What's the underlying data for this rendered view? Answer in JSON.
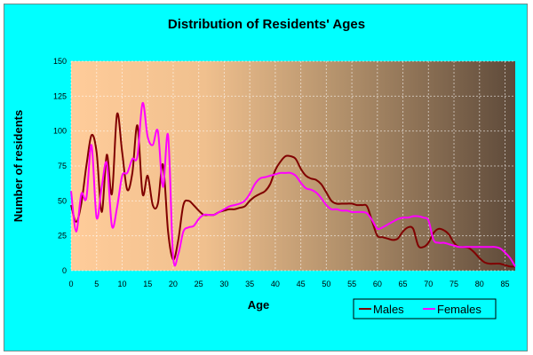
{
  "chart_data": {
    "type": "line",
    "title": "Distribution of Residents' Ages",
    "xlabel": "Age",
    "ylabel": "Number of residents",
    "xlim": [
      0,
      87
    ],
    "ylim": [
      0,
      150
    ],
    "x_ticks": [
      0,
      5,
      10,
      15,
      20,
      25,
      30,
      35,
      40,
      45,
      50,
      55,
      60,
      65,
      70,
      75,
      80,
      85
    ],
    "y_ticks": [
      0,
      25,
      50,
      75,
      100,
      125,
      150
    ],
    "grid": true,
    "legend_position": "bottom-right",
    "series": [
      {
        "name": "Males",
        "color": "#800000",
        "x": [
          0,
          1,
          2,
          3,
          4,
          5,
          6,
          7,
          8,
          9,
          10,
          11,
          12,
          13,
          14,
          15,
          16,
          17,
          18,
          19,
          20,
          21,
          22,
          23,
          24,
          25,
          26,
          27,
          28,
          29,
          30,
          31,
          32,
          33,
          34,
          35,
          36,
          37,
          38,
          39,
          40,
          41,
          42,
          43,
          44,
          45,
          46,
          47,
          48,
          49,
          50,
          51,
          52,
          53,
          54,
          55,
          56,
          57,
          58,
          59,
          60,
          61,
          62,
          63,
          64,
          65,
          66,
          67,
          68,
          69,
          70,
          71,
          72,
          73,
          74,
          75,
          76,
          77,
          78,
          79,
          80,
          81,
          82,
          83,
          84,
          85,
          86,
          87
        ],
        "y": [
          47,
          35,
          48,
          75,
          97,
          85,
          42,
          83,
          55,
          112,
          85,
          58,
          70,
          104,
          55,
          68,
          47,
          48,
          76,
          28,
          8,
          22,
          47,
          50,
          47,
          43,
          40,
          40,
          40,
          42,
          43,
          44,
          44,
          45,
          46,
          50,
          53,
          55,
          57,
          62,
          72,
          78,
          82,
          82,
          80,
          73,
          68,
          66,
          65,
          62,
          56,
          50,
          48,
          48,
          48,
          48,
          47,
          47,
          46,
          35,
          25,
          24,
          23,
          22,
          23,
          28,
          31,
          30,
          18,
          17,
          20,
          27,
          30,
          29,
          26,
          20,
          17,
          17,
          16,
          13,
          9,
          6,
          5,
          5,
          5,
          4,
          3,
          3
        ]
      },
      {
        "name": "Females",
        "color": "#ff00ff",
        "x": [
          0,
          1,
          2,
          3,
          4,
          5,
          6,
          7,
          8,
          9,
          10,
          11,
          12,
          13,
          14,
          15,
          16,
          17,
          18,
          19,
          20,
          21,
          22,
          23,
          24,
          25,
          26,
          27,
          28,
          29,
          30,
          31,
          32,
          33,
          34,
          35,
          36,
          37,
          38,
          39,
          40,
          41,
          42,
          43,
          44,
          45,
          46,
          47,
          48,
          49,
          50,
          51,
          52,
          53,
          54,
          55,
          56,
          57,
          58,
          59,
          60,
          61,
          62,
          63,
          64,
          65,
          66,
          67,
          68,
          69,
          70,
          71,
          72,
          73,
          74,
          75,
          76,
          77,
          78,
          79,
          80,
          81,
          82,
          83,
          84,
          85,
          86,
          87
        ],
        "y": [
          57,
          28,
          55,
          52,
          90,
          38,
          60,
          77,
          32,
          45,
          68,
          70,
          80,
          82,
          120,
          96,
          90,
          100,
          60,
          97,
          10,
          12,
          28,
          31,
          32,
          37,
          40,
          40,
          40,
          42,
          44,
          46,
          47,
          48,
          50,
          55,
          62,
          66,
          67,
          68,
          69,
          70,
          70,
          70,
          68,
          63,
          59,
          58,
          56,
          52,
          47,
          44,
          44,
          43,
          43,
          42,
          42,
          42,
          41,
          36,
          30,
          31,
          33,
          35,
          37,
          38,
          38,
          39,
          39,
          38,
          36,
          22,
          20,
          20,
          19,
          18,
          17,
          17,
          17,
          17,
          17,
          17,
          17,
          17,
          16,
          13,
          9,
          3
        ]
      }
    ]
  }
}
